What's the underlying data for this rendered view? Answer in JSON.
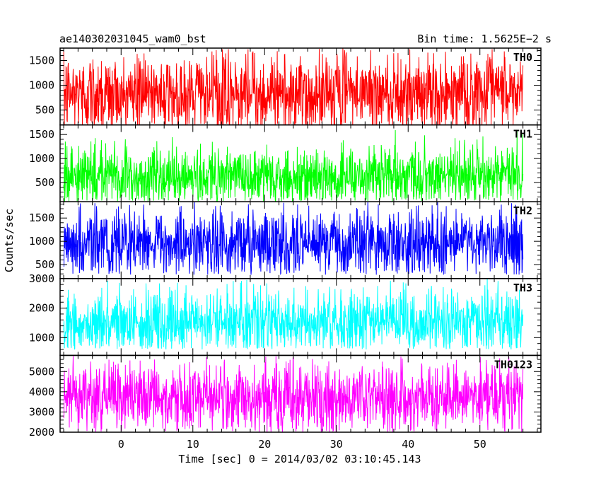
{
  "chart_data": {
    "type": "line",
    "title": "ae140302031045_wam0_bst",
    "subtitle": "Bin time: 1.5625E−2 s",
    "xlabel": "Time [sec] 0 = 2014/03/02 03:10:45.143",
    "ylabel": "Counts/sec",
    "xlim": [
      -8.5,
      58.5
    ],
    "x_ticks": [
      0,
      10,
      20,
      30,
      40,
      50
    ],
    "x_minor_step": 2,
    "data_x_range": [
      -8.0,
      56.0
    ],
    "grid": false,
    "panels": [
      {
        "name": "TH0",
        "color": "#ff0000",
        "ylim": [
          200,
          1750
        ],
        "y_ticks": [
          500,
          1000,
          1500
        ],
        "y_minor_step": 100,
        "mean": 830,
        "typical_low": 320,
        "typical_high": 1380,
        "min": 130,
        "max": 1750
      },
      {
        "name": "TH1",
        "color": "#00ff00",
        "ylim": [
          100,
          1700
        ],
        "y_ticks": [
          500,
          1000,
          1500
        ],
        "y_minor_step": 100,
        "mean": 640,
        "typical_low": 250,
        "typical_high": 1100,
        "min": 110,
        "max": 1680
      },
      {
        "name": "TH2",
        "color": "#0000ff",
        "ylim": [
          200,
          1850
        ],
        "y_ticks": [
          500,
          1000,
          1500
        ],
        "y_minor_step": 100,
        "mean": 960,
        "typical_low": 520,
        "typical_high": 1500,
        "min": 280,
        "max": 1850
      },
      {
        "name": "TH3",
        "color": "#00ffff",
        "ylim": [
          400,
          3000
        ],
        "y_ticks": [
          1000,
          2000,
          3000
        ],
        "y_minor_step": 200,
        "mean": 1500,
        "typical_low": 850,
        "typical_high": 2300,
        "min": 600,
        "max": 3000
      },
      {
        "name": "TH0123",
        "color": "#ff00ff",
        "ylim": [
          2000,
          5800
        ],
        "y_ticks": [
          2000,
          3000,
          4000,
          5000
        ],
        "y_minor_step": 200,
        "mean": 3700,
        "typical_low": 2700,
        "typical_high": 5000,
        "min": 2000,
        "max": 5800
      }
    ]
  }
}
